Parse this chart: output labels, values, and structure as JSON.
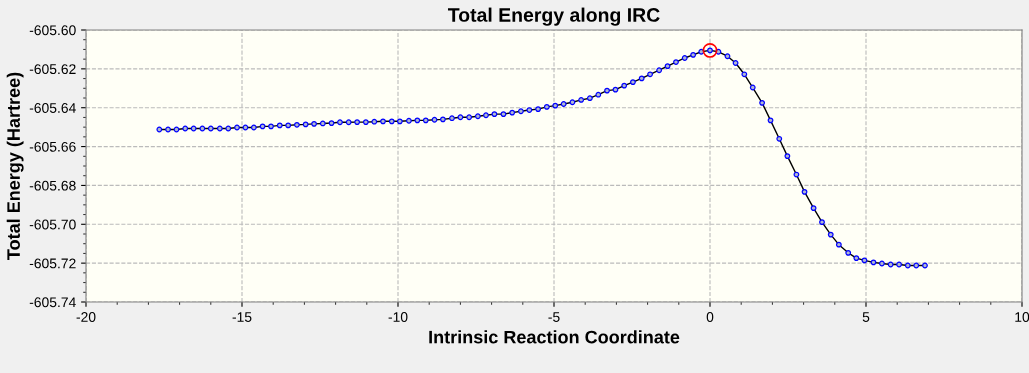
{
  "chart_data": {
    "type": "line",
    "title": "Total Energy along IRC",
    "xlabel": "Intrinsic Reaction Coordinate",
    "ylabel": "Total Energy (Hartree)",
    "xlim": [
      -20,
      10
    ],
    "xticks": [
      -20,
      -15,
      -10,
      -5,
      0,
      5,
      10
    ],
    "ylim": [
      -605.74,
      -605.6
    ],
    "yticks": [
      {
        "value": -605.74,
        "label": "-605.74"
      },
      {
        "value": -605.72,
        "label": "-605.72"
      },
      {
        "value": -605.7,
        "label": "-605.70"
      },
      {
        "value": -605.68,
        "label": "-605.68"
      },
      {
        "value": -605.66,
        "label": "-605.66"
      },
      {
        "value": -605.64,
        "label": "-605.64"
      },
      {
        "value": -605.62,
        "label": "-605.62"
      },
      {
        "value": -605.6,
        "label": "-605.60"
      }
    ],
    "grid": true,
    "marker": "circle",
    "line_style": "solid",
    "series": [
      {
        "color": "#0000ff",
        "x": [
          -17.65,
          -17.37,
          -17.1,
          -16.82,
          -16.55,
          -16.27,
          -16.0,
          -15.71,
          -15.44,
          -15.16,
          -14.89,
          -14.62,
          -14.34,
          -14.07,
          -13.79,
          -13.52,
          -13.24,
          -12.96,
          -12.69,
          -12.41,
          -12.13,
          -11.86,
          -11.58,
          -11.31,
          -11.03,
          -10.76,
          -10.48,
          -10.2,
          -9.94,
          -9.65,
          -9.38,
          -9.11,
          -8.83,
          -8.56,
          -8.27,
          -8.0,
          -7.72,
          -7.44,
          -7.18,
          -6.91,
          -6.62,
          -6.34,
          -6.06,
          -5.79,
          -5.51,
          -5.23,
          -4.96,
          -4.69,
          -4.41,
          -4.13,
          -3.85,
          -3.58,
          -3.3,
          -3.03,
          -2.75,
          -2.47,
          -2.19,
          -1.92,
          -1.63,
          -1.36,
          -1.09,
          -0.81,
          -0.54,
          -0.28,
          0,
          0.27,
          0.56,
          0.82,
          1.1,
          1.37,
          1.67,
          1.94,
          2.22,
          2.48,
          2.77,
          3.03,
          3.32,
          3.59,
          3.87,
          4.13,
          4.43,
          4.69,
          4.95,
          5.24,
          5.51,
          5.79,
          6.06,
          6.34,
          6.61,
          6.89
        ],
        "values": [
          -605.6512,
          -605.6512,
          -605.6512,
          -605.6507,
          -605.6507,
          -605.6507,
          -605.6507,
          -605.6507,
          -605.6507,
          -605.6502,
          -605.6502,
          -605.6502,
          -605.6496,
          -605.6496,
          -605.6491,
          -605.6491,
          -605.6488,
          -605.6486,
          -605.6483,
          -605.6481,
          -605.6479,
          -605.6475,
          -605.6475,
          -605.6474,
          -605.6474,
          -605.6472,
          -605.647,
          -605.647,
          -605.647,
          -605.6467,
          -605.6465,
          -605.6465,
          -605.6462,
          -605.646,
          -605.6454,
          -605.6449,
          -605.6449,
          -605.6444,
          -605.6439,
          -605.6433,
          -605.6433,
          -605.6425,
          -605.6418,
          -605.6412,
          -605.6407,
          -605.6396,
          -605.6389,
          -605.6381,
          -605.6372,
          -605.636,
          -605.6351,
          -605.6333,
          -605.6312,
          -605.6307,
          -605.6286,
          -605.6268,
          -605.6249,
          -605.6228,
          -605.6207,
          -605.6186,
          -605.6165,
          -605.6144,
          -605.6128,
          -605.6112,
          -605.6105,
          -605.6112,
          -605.6135,
          -605.617,
          -605.6228,
          -605.6296,
          -605.6375,
          -605.6465,
          -605.656,
          -605.6649,
          -605.6744,
          -605.6833,
          -605.6917,
          -605.6989,
          -605.7053,
          -605.7105,
          -605.7147,
          -605.7174,
          -605.7186,
          -605.7196,
          -605.7202,
          -605.7207,
          -605.7207,
          -605.7212,
          -605.7212,
          -605.7212
        ]
      },
      {
        "type": "scatter",
        "color": "#ff0000",
        "x": [
          0
        ],
        "values": [
          -605.6105
        ]
      }
    ]
  }
}
